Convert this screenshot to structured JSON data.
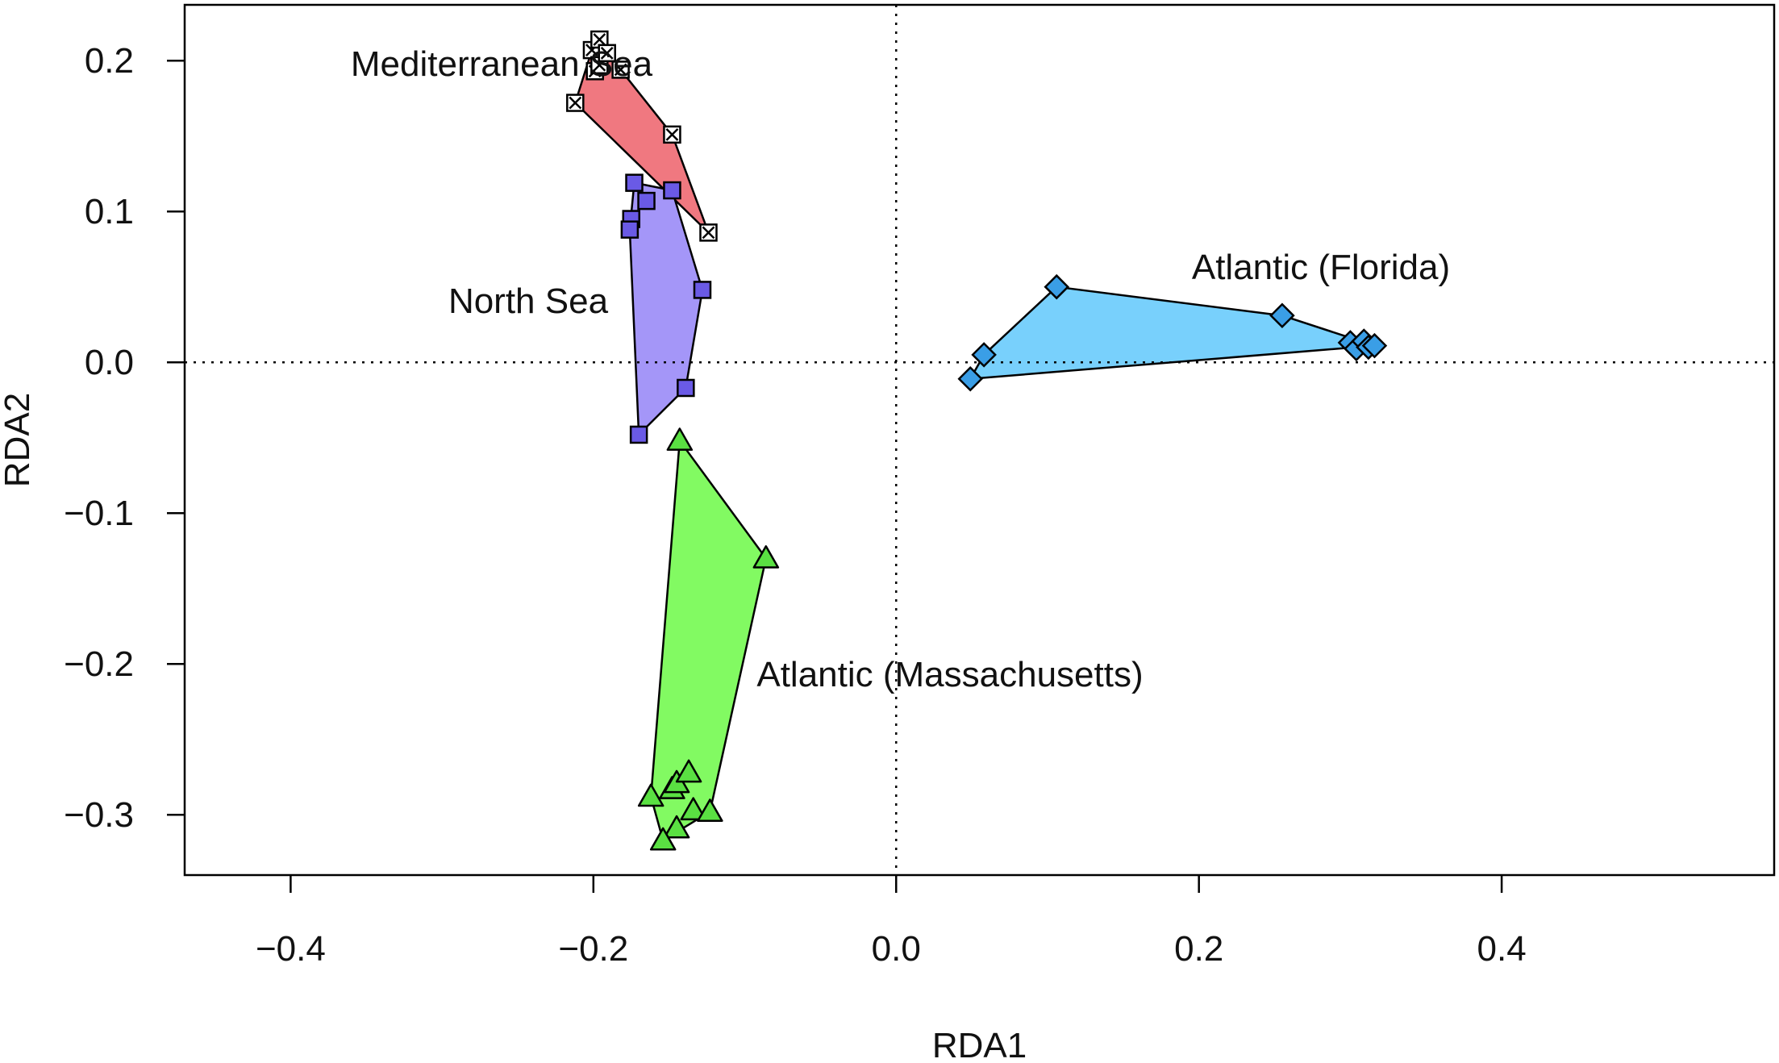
{
  "chart_data": {
    "type": "scatter",
    "title": "",
    "xlabel": "RDA1",
    "ylabel": "RDA2",
    "xlim": [
      -0.47,
      0.58
    ],
    "ylim": [
      -0.34,
      0.237
    ],
    "x_ticks": [
      {
        "value": -0.4,
        "label": "−0.4"
      },
      {
        "value": -0.2,
        "label": "−0.2"
      },
      {
        "value": 0.0,
        "label": "0.0"
      },
      {
        "value": 0.2,
        "label": "0.2"
      },
      {
        "value": 0.4,
        "label": "0.4"
      }
    ],
    "y_ticks": [
      {
        "value": 0.2,
        "label": "0.2"
      },
      {
        "value": 0.1,
        "label": "0.1"
      },
      {
        "value": 0.0,
        "label": "0.0"
      },
      {
        "value": -0.1,
        "label": "−0.1"
      },
      {
        "value": -0.2,
        "label": "−0.2"
      },
      {
        "value": -0.3,
        "label": "−0.3"
      }
    ],
    "reference_lines": {
      "x": 0.0,
      "y": 0.0,
      "style": "dotted"
    },
    "grid": false,
    "legend": "none",
    "series": [
      {
        "name": "Mediterranean Sea",
        "marker": "square-x",
        "fill": "#f07880",
        "marker_fill": "#ffffff",
        "points": [
          {
            "x": -0.212,
            "y": 0.172
          },
          {
            "x": -0.201,
            "y": 0.207
          },
          {
            "x": -0.196,
            "y": 0.214
          },
          {
            "x": -0.199,
            "y": 0.193
          },
          {
            "x": -0.196,
            "y": 0.197
          },
          {
            "x": -0.191,
            "y": 0.205
          },
          {
            "x": -0.182,
            "y": 0.194
          },
          {
            "x": -0.148,
            "y": 0.151
          },
          {
            "x": -0.124,
            "y": 0.086
          }
        ],
        "hull_order": [
          0,
          1,
          2,
          6,
          7,
          8
        ]
      },
      {
        "name": "North Sea",
        "marker": "square",
        "fill": "#a496f8",
        "marker_fill": "#6a5ae6",
        "points": [
          {
            "x": -0.173,
            "y": 0.119
          },
          {
            "x": -0.165,
            "y": 0.107
          },
          {
            "x": -0.175,
            "y": 0.095
          },
          {
            "x": -0.176,
            "y": 0.088
          },
          {
            "x": -0.148,
            "y": 0.114
          },
          {
            "x": -0.128,
            "y": 0.048
          },
          {
            "x": -0.139,
            "y": -0.017
          },
          {
            "x": -0.17,
            "y": -0.048
          }
        ],
        "hull_order": [
          0,
          4,
          5,
          6,
          7,
          3
        ]
      },
      {
        "name": "Atlantic (Florida)",
        "marker": "diamond",
        "fill": "#78d0fc",
        "marker_fill": "#3a9ee6",
        "points": [
          {
            "x": 0.106,
            "y": 0.05
          },
          {
            "x": 0.255,
            "y": 0.031
          },
          {
            "x": 0.058,
            "y": 0.005
          },
          {
            "x": 0.049,
            "y": -0.011
          },
          {
            "x": 0.3,
            "y": 0.013
          },
          {
            "x": 0.304,
            "y": 0.009
          },
          {
            "x": 0.309,
            "y": 0.014
          },
          {
            "x": 0.312,
            "y": 0.01
          },
          {
            "x": 0.316,
            "y": 0.011
          }
        ],
        "hull_order": [
          0,
          1,
          8,
          3,
          2
        ]
      },
      {
        "name": "Atlantic (Massachusetts)",
        "marker": "triangle",
        "fill": "#82fa62",
        "marker_fill": "#5ae042",
        "points": [
          {
            "x": -0.143,
            "y": -0.052
          },
          {
            "x": -0.086,
            "y": -0.13
          },
          {
            "x": -0.162,
            "y": -0.288
          },
          {
            "x": -0.148,
            "y": -0.283
          },
          {
            "x": -0.145,
            "y": -0.279
          },
          {
            "x": -0.137,
            "y": -0.272
          },
          {
            "x": -0.134,
            "y": -0.297
          },
          {
            "x": -0.123,
            "y": -0.298
          },
          {
            "x": -0.145,
            "y": -0.309
          },
          {
            "x": -0.154,
            "y": -0.317
          }
        ],
        "hull_order": [
          0,
          1,
          7,
          9,
          2
        ]
      }
    ]
  }
}
